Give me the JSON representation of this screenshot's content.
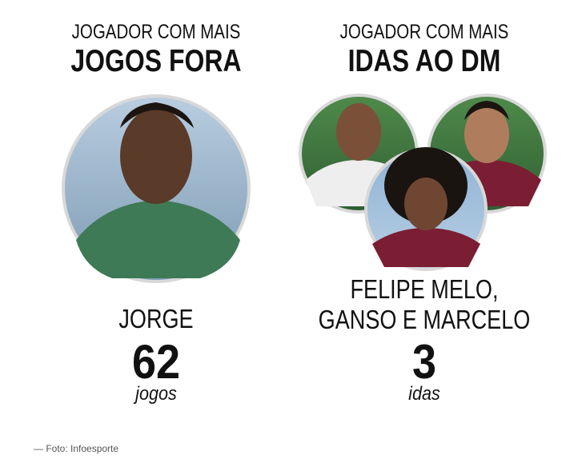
{
  "columns": [
    {
      "heading": "JOGADOR COM MAIS",
      "title": "JOGOS FORA",
      "player": [
        "JORGE"
      ],
      "count": 62,
      "unit": "jogos"
    },
    {
      "heading": "JOGADOR COM MAIS",
      "title": "IDAS AO DM",
      "player": [
        "FELIPE MELO,",
        "GANSO E MARCELO"
      ],
      "count": 3,
      "unit": "idas"
    }
  ],
  "caption": "— Foto: Infoesporte"
}
